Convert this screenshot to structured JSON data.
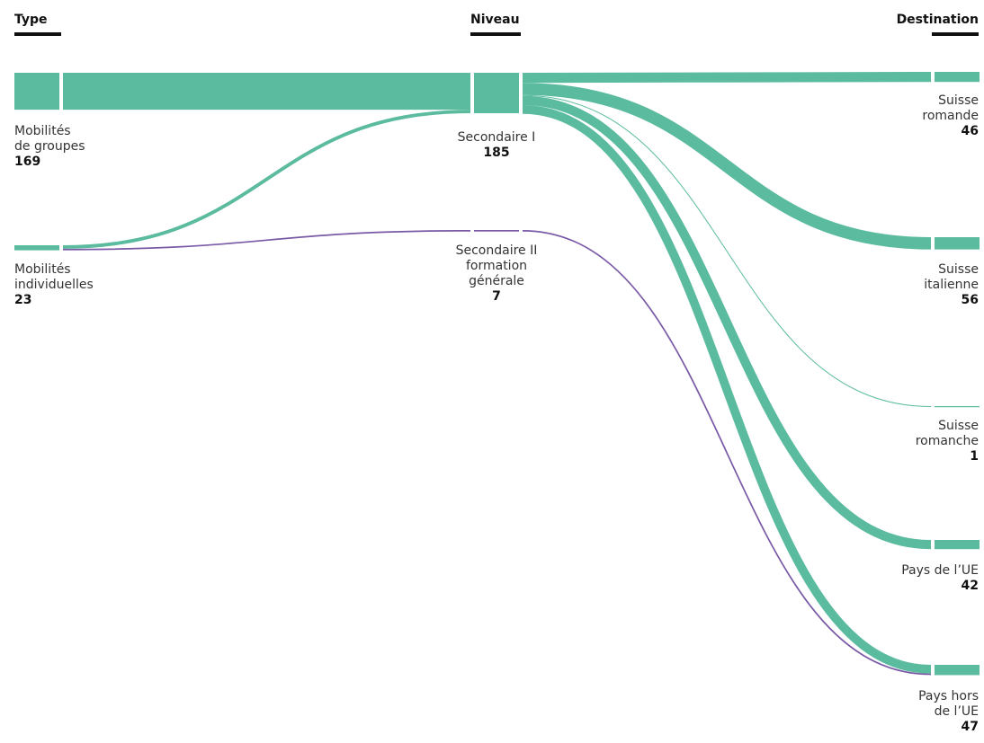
{
  "columns": {
    "type": "Type",
    "niveau": "Niveau",
    "destination": "Destination"
  },
  "colors": {
    "green": "#5bbb9e",
    "purple": "#7a5aa6"
  },
  "chart_data": {
    "type": "sankey",
    "nodes": {
      "type": [
        {
          "id": "groupes",
          "label": "Mobilités\nde groupes",
          "value": 169
        },
        {
          "id": "individuelles",
          "label": "Mobilités\nindividuelles",
          "value": 23
        }
      ],
      "niveau": [
        {
          "id": "sec1",
          "label": "Secondaire I",
          "value": 185
        },
        {
          "id": "sec2",
          "label": "Secondaire II\nformation\ngénérale",
          "value": 7
        }
      ],
      "destination": [
        {
          "id": "romande",
          "label": "Suisse\nromande",
          "value": 46
        },
        {
          "id": "italienne",
          "label": "Suisse\nitalienne",
          "value": 56
        },
        {
          "id": "romanche",
          "label": "Suisse\nromanche",
          "value": 1
        },
        {
          "id": "ue",
          "label": "Pays de l’UE",
          "value": 42
        },
        {
          "id": "horsue",
          "label": "Pays hors\nde l’UE",
          "value": 47
        }
      ]
    },
    "links": [
      {
        "source": "groupes",
        "target": "sec1",
        "value": 169,
        "color": "green"
      },
      {
        "source": "individuelles",
        "target": "sec1",
        "value": 16,
        "color": "green"
      },
      {
        "source": "individuelles",
        "target": "sec2",
        "value": 7,
        "color": "purple"
      },
      {
        "source": "sec1",
        "target": "romande",
        "value": 46,
        "color": "green"
      },
      {
        "source": "sec1",
        "target": "italienne",
        "value": 56,
        "color": "green"
      },
      {
        "source": "sec1",
        "target": "romanche",
        "value": 1,
        "color": "green"
      },
      {
        "source": "sec1",
        "target": "ue",
        "value": 42,
        "color": "green"
      },
      {
        "source": "sec1",
        "target": "horsue",
        "value": 40,
        "color": "green"
      },
      {
        "source": "sec2",
        "target": "horsue",
        "value": 7,
        "color": "purple"
      }
    ]
  }
}
